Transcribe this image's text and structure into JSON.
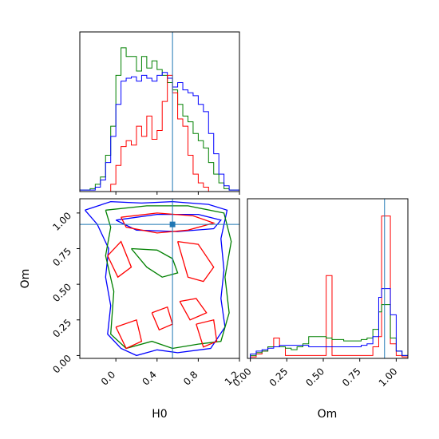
{
  "chart_data": {
    "type": "corner",
    "parameters": [
      "H0",
      "Om"
    ],
    "truth": {
      "H0": 0.55,
      "Om": 0.92
    },
    "marker": {
      "H0": 0.55,
      "Om": 0.92
    },
    "colors": {
      "red": "#ff0000",
      "green": "#008000",
      "blue": "#0000ff",
      "truth": "#1f77b4"
    },
    "panels": {
      "h0_hist": {
        "xlim": [
          -0.35,
          1.2
        ],
        "series": [
          {
            "color": "green",
            "bin_edges": [
              -0.35,
              -0.3,
              -0.25,
              -0.2,
              -0.15,
              -0.1,
              -0.05,
              0.0,
              0.05,
              0.1,
              0.15,
              0.2,
              0.25,
              0.3,
              0.35,
              0.4,
              0.45,
              0.5,
              0.55,
              0.6,
              0.65,
              0.7,
              0.75,
              0.8,
              0.85,
              0.9,
              0.95,
              1.0,
              1.05,
              1.1,
              1.15,
              1.2
            ],
            "counts": [
              0.01,
              0.01,
              0.02,
              0.05,
              0.1,
              0.25,
              0.45,
              0.8,
              0.99,
              0.93,
              0.93,
              0.83,
              0.93,
              0.85,
              0.9,
              0.84,
              0.8,
              0.75,
              0.7,
              0.6,
              0.52,
              0.48,
              0.4,
              0.35,
              0.3,
              0.2,
              0.12,
              0.06,
              0.02,
              0.01,
              0.01
            ]
          },
          {
            "color": "blue",
            "bin_edges": [
              -0.35,
              -0.3,
              -0.25,
              -0.2,
              -0.15,
              -0.1,
              -0.05,
              0.0,
              0.05,
              0.1,
              0.15,
              0.2,
              0.25,
              0.3,
              0.35,
              0.4,
              0.45,
              0.5,
              0.55,
              0.6,
              0.65,
              0.7,
              0.75,
              0.8,
              0.85,
              0.9,
              0.95,
              1.0,
              1.05,
              1.1,
              1.15,
              1.2
            ],
            "counts": [
              0.01,
              0.01,
              0.01,
              0.03,
              0.08,
              0.2,
              0.38,
              0.6,
              0.76,
              0.78,
              0.79,
              0.76,
              0.8,
              0.78,
              0.76,
              0.8,
              0.82,
              0.78,
              0.72,
              0.75,
              0.7,
              0.68,
              0.66,
              0.6,
              0.55,
              0.4,
              0.26,
              0.12,
              0.04,
              0.01,
              0.01
            ]
          },
          {
            "color": "red",
            "bin_edges": [
              -0.35,
              -0.3,
              -0.25,
              -0.2,
              -0.15,
              -0.1,
              -0.05,
              0.0,
              0.05,
              0.1,
              0.15,
              0.2,
              0.25,
              0.3,
              0.35,
              0.4,
              0.45,
              0.5,
              0.55,
              0.6,
              0.65,
              0.7,
              0.75,
              0.8,
              0.85,
              0.9,
              0.95,
              1.0,
              1.05,
              1.1,
              1.15,
              1.2
            ],
            "counts": [
              0,
              0,
              0,
              0,
              0,
              0,
              0.05,
              0.18,
              0.31,
              0.35,
              0.32,
              0.45,
              0.38,
              0.52,
              0.36,
              0.42,
              0.62,
              0.8,
              0.68,
              0.5,
              0.45,
              0.25,
              0.12,
              0.06,
              0.03,
              0,
              0,
              0,
              0,
              0,
              0
            ]
          }
        ]
      },
      "om_hist": {
        "xlim": [
          -0.02,
          1.08
        ],
        "xticks": [
          0.0,
          0.25,
          0.5,
          0.75,
          1.0
        ],
        "xtick_labels": [
          "0.00",
          "0.25",
          "0.50",
          "0.75",
          "1.00"
        ],
        "xlabel": "Om",
        "series": [
          {
            "color": "red",
            "bin_edges": [
              0.0,
              0.04,
              0.08,
              0.12,
              0.16,
              0.2,
              0.24,
              0.28,
              0.32,
              0.36,
              0.4,
              0.44,
              0.48,
              0.52,
              0.56,
              0.6,
              0.64,
              0.68,
              0.72,
              0.76,
              0.8,
              0.84,
              0.88,
              0.9,
              0.96,
              1.0,
              1.04,
              1.08
            ],
            "counts": [
              0.01,
              0.03,
              0.05,
              0.08,
              0.14,
              0.08,
              0.02,
              0.02,
              0.02,
              0.02,
              0.02,
              0.02,
              0.02,
              0.57,
              0.02,
              0.02,
              0.02,
              0.02,
              0.02,
              0.02,
              0.02,
              0.08,
              0.15,
              0.98,
              0.1,
              0.02,
              0.01
            ]
          },
          {
            "color": "green",
            "bin_edges": [
              0.0,
              0.04,
              0.08,
              0.12,
              0.16,
              0.2,
              0.24,
              0.28,
              0.32,
              0.36,
              0.4,
              0.44,
              0.48,
              0.52,
              0.56,
              0.6,
              0.64,
              0.68,
              0.72,
              0.76,
              0.8,
              0.84,
              0.88,
              0.9,
              0.96,
              1.0,
              1.04,
              1.08
            ],
            "counts": [
              0.02,
              0.04,
              0.05,
              0.08,
              0.08,
              0.08,
              0.07,
              0.06,
              0.08,
              0.1,
              0.15,
              0.15,
              0.15,
              0.14,
              0.13,
              0.13,
              0.12,
              0.12,
              0.12,
              0.13,
              0.14,
              0.2,
              0.32,
              0.37,
              0.14,
              0.05,
              0.02
            ]
          },
          {
            "color": "blue",
            "bin_edges": [
              0.0,
              0.04,
              0.08,
              0.12,
              0.16,
              0.2,
              0.24,
              0.28,
              0.32,
              0.36,
              0.4,
              0.44,
              0.48,
              0.52,
              0.56,
              0.6,
              0.64,
              0.68,
              0.72,
              0.76,
              0.8,
              0.84,
              0.88,
              0.9,
              0.96,
              1.0,
              1.04,
              1.08
            ],
            "counts": [
              0.03,
              0.05,
              0.06,
              0.07,
              0.08,
              0.09,
              0.09,
              0.09,
              0.09,
              0.09,
              0.08,
              0.08,
              0.08,
              0.08,
              0.08,
              0.08,
              0.08,
              0.08,
              0.08,
              0.09,
              0.1,
              0.15,
              0.42,
              0.48,
              0.3,
              0.05,
              0.02
            ]
          }
        ]
      },
      "scatter": {
        "xlim": [
          -0.35,
          1.2
        ],
        "ylim": [
          -0.02,
          1.1
        ],
        "xticks": [
          0.0,
          0.4,
          0.8,
          1.2
        ],
        "xtick_labels": [
          "0.0",
          "0.4",
          "0.8",
          "1.2"
        ],
        "yticks": [
          0.0,
          0.25,
          0.5,
          0.75,
          1.0
        ],
        "ytick_labels": [
          "0.00",
          "0.25",
          "0.50",
          "0.75",
          "1.00"
        ],
        "xlabel": "H0",
        "ylabel": "Om",
        "contours": [
          {
            "color": "blue",
            "points": [
              [
                -0.3,
                1.02
              ],
              [
                -0.05,
                1.08
              ],
              [
                0.25,
                1.07
              ],
              [
                0.55,
                1.08
              ],
              [
                0.9,
                1.06
              ],
              [
                1.08,
                1.02
              ],
              [
                1.02,
                0.82
              ],
              [
                1.05,
                0.6
              ],
              [
                1.02,
                0.4
              ],
              [
                1.06,
                0.2
              ],
              [
                0.92,
                0.05
              ],
              [
                0.6,
                0.02
              ],
              [
                0.4,
                0.04
              ],
              [
                0.2,
                0.0
              ],
              [
                0.05,
                0.05
              ],
              [
                -0.08,
                0.15
              ],
              [
                -0.05,
                0.35
              ],
              [
                -0.1,
                0.55
              ],
              [
                -0.07,
                0.75
              ],
              [
                -0.18,
                0.92
              ],
              [
                -0.3,
                1.02
              ]
            ]
          },
          {
            "color": "blue",
            "points": [
              [
                0.0,
                0.95
              ],
              [
                0.4,
                0.99
              ],
              [
                0.8,
                0.99
              ],
              [
                1.02,
                0.95
              ],
              [
                0.95,
                0.89
              ],
              [
                0.6,
                0.87
              ],
              [
                0.2,
                0.88
              ],
              [
                0.0,
                0.95
              ]
            ]
          },
          {
            "color": "green",
            "points": [
              [
                -0.1,
                1.02
              ],
              [
                0.3,
                1.05
              ],
              [
                0.7,
                1.05
              ],
              [
                1.05,
                1.0
              ],
              [
                1.12,
                0.8
              ],
              [
                1.06,
                0.55
              ],
              [
                1.1,
                0.3
              ],
              [
                1.02,
                0.1
              ],
              [
                0.8,
                0.08
              ],
              [
                0.55,
                0.05
              ],
              [
                0.35,
                0.1
              ],
              [
                0.1,
                0.05
              ],
              [
                -0.05,
                0.15
              ],
              [
                -0.02,
                0.45
              ],
              [
                -0.1,
                0.7
              ],
              [
                -0.05,
                0.9
              ],
              [
                -0.1,
                1.02
              ]
            ]
          },
          {
            "color": "green",
            "points": [
              [
                0.15,
                0.75
              ],
              [
                0.3,
                0.62
              ],
              [
                0.45,
                0.55
              ],
              [
                0.6,
                0.58
              ],
              [
                0.55,
                0.68
              ],
              [
                0.4,
                0.74
              ],
              [
                0.15,
                0.75
              ]
            ]
          },
          {
            "color": "red",
            "points": [
              [
                0.05,
                0.97
              ],
              [
                0.4,
                1.0
              ],
              [
                0.75,
                0.98
              ],
              [
                0.95,
                0.93
              ],
              [
                0.7,
                0.88
              ],
              [
                0.4,
                0.86
              ],
              [
                0.1,
                0.9
              ],
              [
                0.05,
                0.97
              ]
            ]
          },
          {
            "color": "red",
            "points": [
              [
                -0.08,
                0.7
              ],
              [
                0.05,
                0.8
              ],
              [
                0.15,
                0.62
              ],
              [
                0.02,
                0.55
              ],
              [
                -0.08,
                0.7
              ]
            ]
          },
          {
            "color": "red",
            "points": [
              [
                0.6,
                0.8
              ],
              [
                0.8,
                0.78
              ],
              [
                0.95,
                0.62
              ],
              [
                0.85,
                0.52
              ],
              [
                0.7,
                0.55
              ],
              [
                0.6,
                0.8
              ]
            ]
          },
          {
            "color": "red",
            "points": [
              [
                0.35,
                0.3
              ],
              [
                0.5,
                0.34
              ],
              [
                0.55,
                0.22
              ],
              [
                0.42,
                0.18
              ],
              [
                0.35,
                0.3
              ]
            ]
          },
          {
            "color": "red",
            "points": [
              [
                0.62,
                0.38
              ],
              [
                0.78,
                0.4
              ],
              [
                0.88,
                0.3
              ],
              [
                0.72,
                0.25
              ],
              [
                0.62,
                0.38
              ]
            ]
          },
          {
            "color": "red",
            "points": [
              [
                0.0,
                0.2
              ],
              [
                0.2,
                0.25
              ],
              [
                0.25,
                0.1
              ],
              [
                0.1,
                0.05
              ],
              [
                0.0,
                0.2
              ]
            ]
          },
          {
            "color": "red",
            "points": [
              [
                0.78,
                0.22
              ],
              [
                0.95,
                0.25
              ],
              [
                0.98,
                0.1
              ],
              [
                0.85,
                0.06
              ],
              [
                0.78,
                0.22
              ]
            ]
          }
        ]
      }
    }
  }
}
